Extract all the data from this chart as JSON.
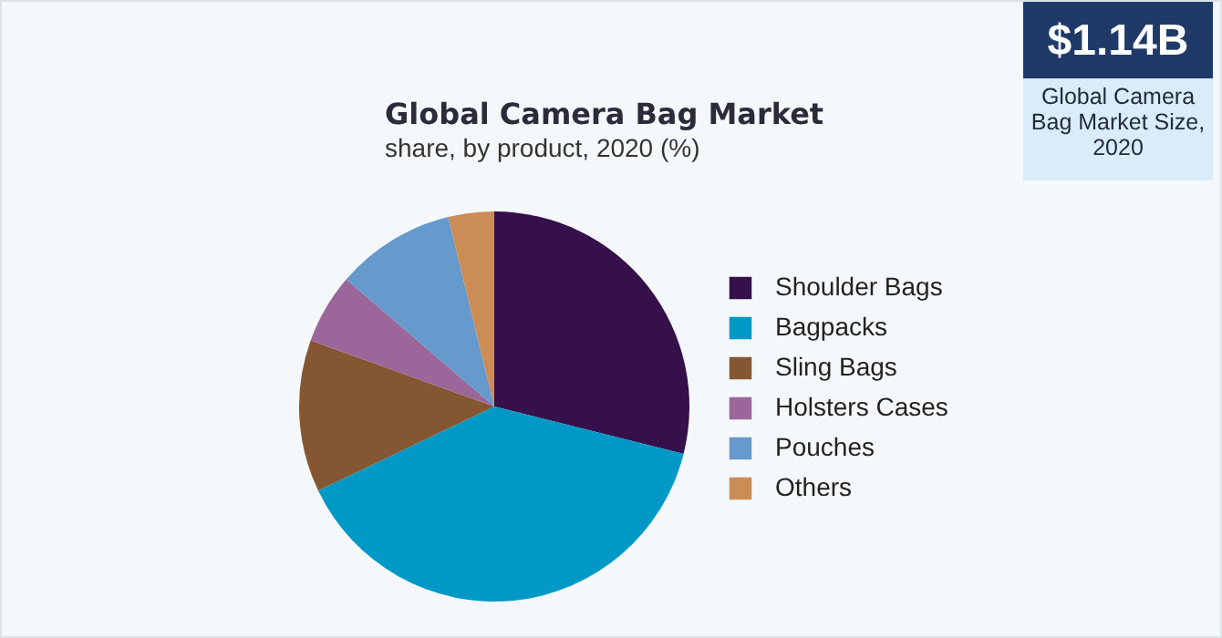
{
  "chart_data": {
    "type": "pie",
    "title": "Global Camera Bag Market",
    "subtitle": "share, by product, 2020 (%)",
    "categories": [
      "Shoulder Bags",
      "Bagpacks",
      "Sling Bags",
      "Holsters Cases",
      "Pouches",
      "Others"
    ],
    "values": [
      28.9,
      39.0,
      12.6,
      5.8,
      9.9,
      3.8
    ],
    "colors": [
      "#35104a",
      "#0099c6",
      "#855632",
      "#9b6699",
      "#6699cc",
      "#cc8c55"
    ],
    "legend": "right",
    "annotations": [
      "$1.14B",
      "Global Camera Bag Market Size, 2020"
    ]
  }
}
